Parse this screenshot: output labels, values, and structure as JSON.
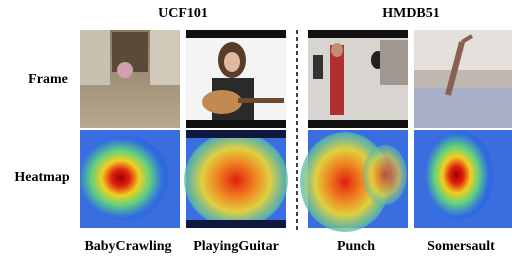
{
  "figure": {
    "datasets": [
      "UCF101",
      "HMDB51"
    ],
    "rows": [
      "Frame",
      "Heatmap"
    ],
    "columns": [
      "BabyCrawling",
      "PlayingGuitar",
      "Punch",
      "Somersault"
    ]
  }
}
